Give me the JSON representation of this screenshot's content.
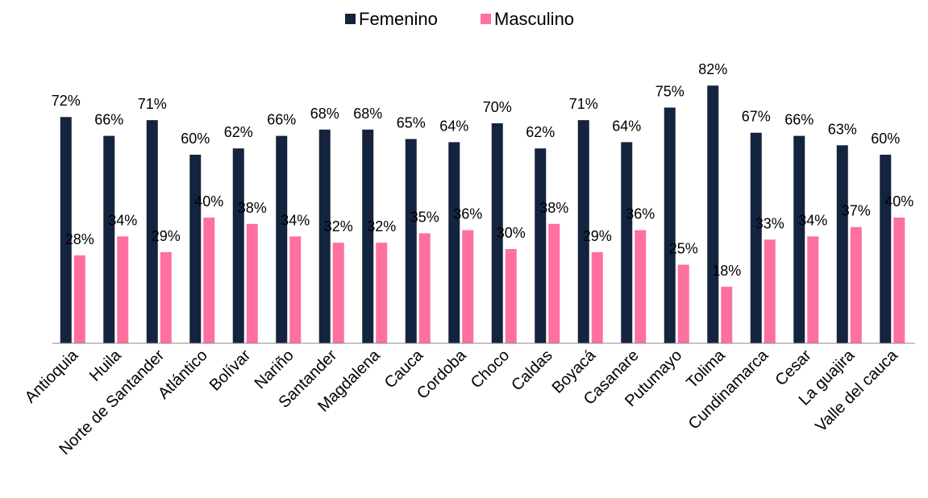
{
  "chart_data": {
    "type": "bar",
    "categories": [
      "Antioquia",
      "Huila",
      "Norte de Santander",
      "Atlántico",
      "Bolívar",
      "Nariño",
      "Santander",
      "Magdalena",
      "Cauca",
      "Cordoba",
      "Choco",
      "Caldas",
      "Boyacá",
      "Casanare",
      "Putumayo",
      "Tolima",
      "Cundinamarca",
      "Cesar",
      "La guajira",
      "Valle del cauca"
    ],
    "series": [
      {
        "name": "Femenino",
        "color": "#14243f",
        "values": [
          72,
          66,
          71,
          60,
          62,
          66,
          68,
          68,
          65,
          64,
          70,
          62,
          71,
          64,
          75,
          82,
          67,
          66,
          63,
          60
        ],
        "value_labels": [
          "72%",
          "66%",
          "71%",
          "60%",
          "62%",
          "66%",
          "68%",
          "68%",
          "65%",
          "64%",
          "70%",
          "62%",
          "71%",
          "64%",
          "75%",
          "82%",
          "67%",
          "66%",
          "63%",
          "60%"
        ]
      },
      {
        "name": "Masculino",
        "color": "#ff6fa0",
        "values": [
          28,
          34,
          29,
          40,
          38,
          34,
          32,
          32,
          35,
          36,
          30,
          38,
          29,
          36,
          25,
          18,
          33,
          34,
          37,
          40
        ],
        "value_labels": [
          "28%",
          "34%",
          "29%",
          "40%",
          "38%",
          "34%",
          "32%",
          "32%",
          "35%",
          "36%",
          "30%",
          "38%",
          "29%",
          "36%",
          "25%",
          "18%",
          "33%",
          "34%",
          "37%",
          "40%"
        ]
      }
    ],
    "legend": "top"
  }
}
